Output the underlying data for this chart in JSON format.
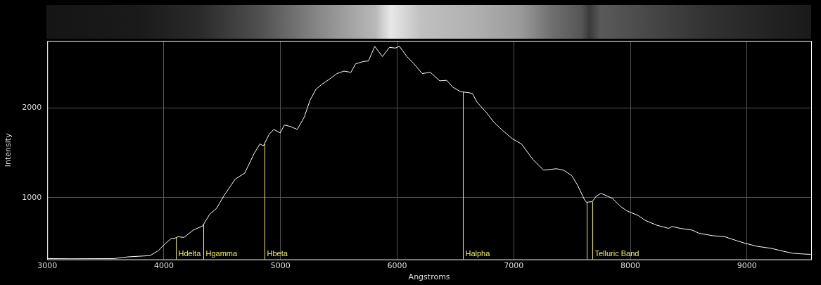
{
  "chart_data": {
    "type": "line",
    "xlabel": "Angstroms",
    "ylabel": "Intensity",
    "xlim": [
      3000,
      9550
    ],
    "xticks": [
      3000,
      4000,
      5000,
      6000,
      7000,
      8000,
      9000
    ],
    "ylim": [
      310,
      2750
    ],
    "yticks": [
      1000,
      2000
    ],
    "grid": true,
    "legend": false,
    "marker": "none",
    "line_style": "solid",
    "series": [
      {
        "color": "#ffffff",
        "x": [
          3002,
          3210,
          3571,
          3691,
          3881,
          3951,
          4002,
          4062,
          4096,
          4122,
          4172,
          4252,
          4332,
          4392,
          4452,
          4512,
          4612,
          4693,
          4773,
          4823,
          4853,
          4903,
          4943,
          4997,
          5033,
          5083,
          5143,
          5203,
          5253,
          5303,
          5353,
          5423,
          5483,
          5544,
          5604,
          5644,
          5714,
          5754,
          5808,
          5874,
          5934,
          5984,
          6020,
          6084,
          6144,
          6215,
          6285,
          6365,
          6425,
          6475,
          6545,
          6605,
          6645,
          6685,
          6765,
          6825,
          6906,
          6986,
          7066,
          7166,
          7256,
          7366,
          7427,
          7497,
          7547,
          7607,
          7623,
          7672,
          7708,
          7748,
          7848,
          7918,
          7968,
          8068,
          8128,
          8228,
          8328,
          8358,
          8429,
          8529,
          8589,
          8709,
          8809,
          8909,
          8989,
          9090,
          9210,
          9310,
          9390,
          9470,
          9546
        ],
        "values": [
          319,
          317,
          319,
          338,
          352,
          406,
          474,
          542,
          547,
          563,
          555,
          637,
          683,
          813,
          880,
          1016,
          1206,
          1273,
          1490,
          1599,
          1577,
          1707,
          1761,
          1721,
          1810,
          1794,
          1761,
          1897,
          2086,
          2208,
          2263,
          2325,
          2384,
          2412,
          2398,
          2493,
          2520,
          2525,
          2688,
          2574,
          2677,
          2669,
          2688,
          2574,
          2493,
          2384,
          2398,
          2303,
          2309,
          2235,
          2181,
          2173,
          2162,
          2065,
          1951,
          1848,
          1748,
          1658,
          1599,
          1422,
          1306,
          1322,
          1306,
          1246,
          1138,
          975,
          948,
          954,
          1016,
          1048,
          989,
          899,
          853,
          799,
          745,
          691,
          656,
          677,
          656,
          637,
          601,
          574,
          563,
          520,
          488,
          455,
          433,
          401,
          379,
          371,
          366
        ]
      }
    ],
    "ref_lines": [
      {
        "axis": "x",
        "value": 4102,
        "label": "Hdelta",
        "color": "#f0f060"
      },
      {
        "axis": "x",
        "value": 4340,
        "label": "Hgamma",
        "color": "#f0f060"
      },
      {
        "axis": "x",
        "value": 4861,
        "label": "Hbeta",
        "color": "#f0f060"
      },
      {
        "axis": "x",
        "value": 6563,
        "label": "Halpha",
        "color": "#f0f060"
      },
      {
        "axis": "x",
        "value": 7623,
        "color": "#f0f060"
      },
      {
        "axis": "x",
        "value": 7672,
        "label": "Telluric Band",
        "color": "#f0f060"
      }
    ]
  }
}
